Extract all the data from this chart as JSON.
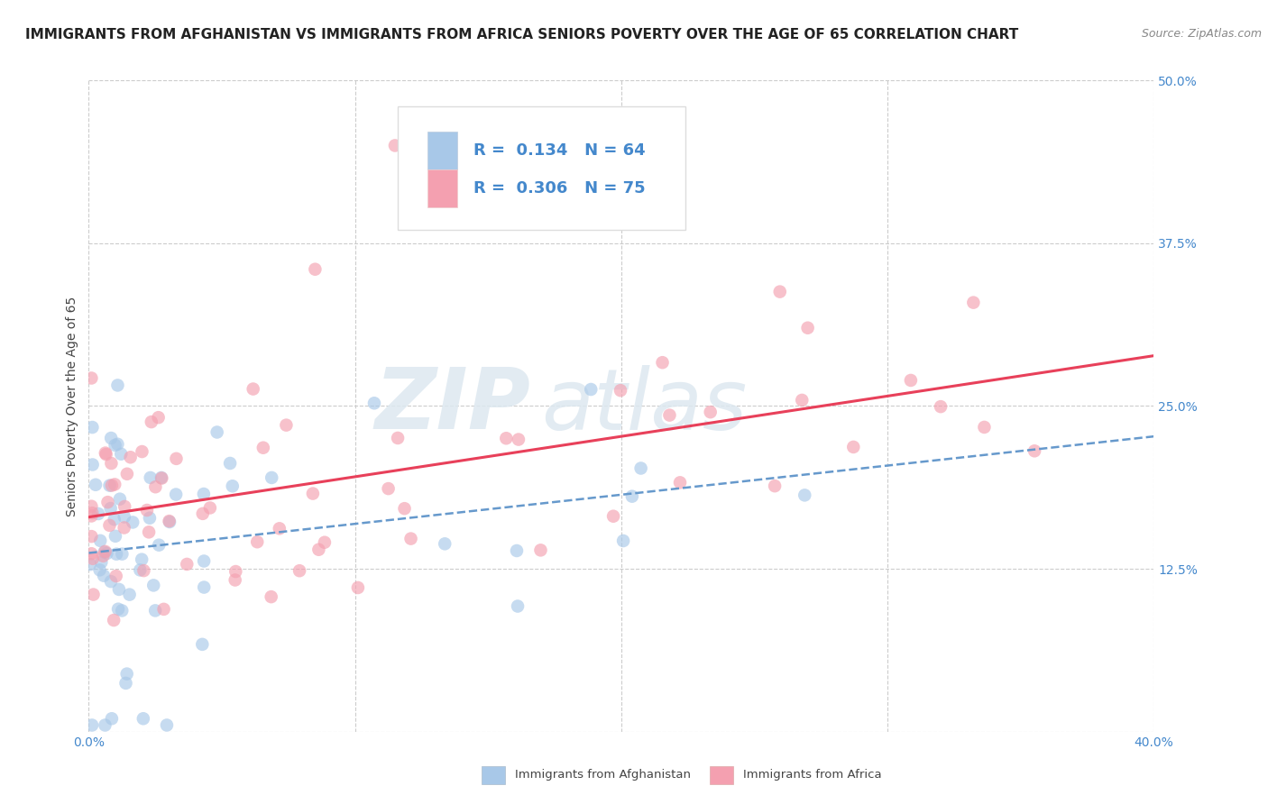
{
  "title": "IMMIGRANTS FROM AFGHANISTAN VS IMMIGRANTS FROM AFRICA SENIORS POVERTY OVER THE AGE OF 65 CORRELATION CHART",
  "source": "Source: ZipAtlas.com",
  "ylabel": "Seniors Poverty Over the Age of 65",
  "xlabel_afghanistan": "Immigrants from Afghanistan",
  "xlabel_africa": "Immigrants from Africa",
  "xlim": [
    0.0,
    0.4
  ],
  "ylim": [
    0.0,
    0.5
  ],
  "xticks": [
    0.0,
    0.1,
    0.2,
    0.3,
    0.4
  ],
  "yticks": [
    0.0,
    0.125,
    0.25,
    0.375,
    0.5
  ],
  "r_afghanistan": 0.134,
  "n_afghanistan": 64,
  "r_africa": 0.306,
  "n_africa": 75,
  "color_afghanistan": "#a8c8e8",
  "color_africa": "#f4a0b0",
  "color_trendline_afghanistan": "#6699cc",
  "color_trendline_africa": "#e8405a",
  "tick_label_color": "#4488cc",
  "watermark_zip": "ZIP",
  "watermark_atlas": "atlas",
  "background_color": "#ffffff",
  "grid_color": "#cccccc",
  "title_fontsize": 11,
  "ylabel_fontsize": 10,
  "tick_fontsize": 10,
  "legend_fontsize": 13,
  "source_fontsize": 9
}
